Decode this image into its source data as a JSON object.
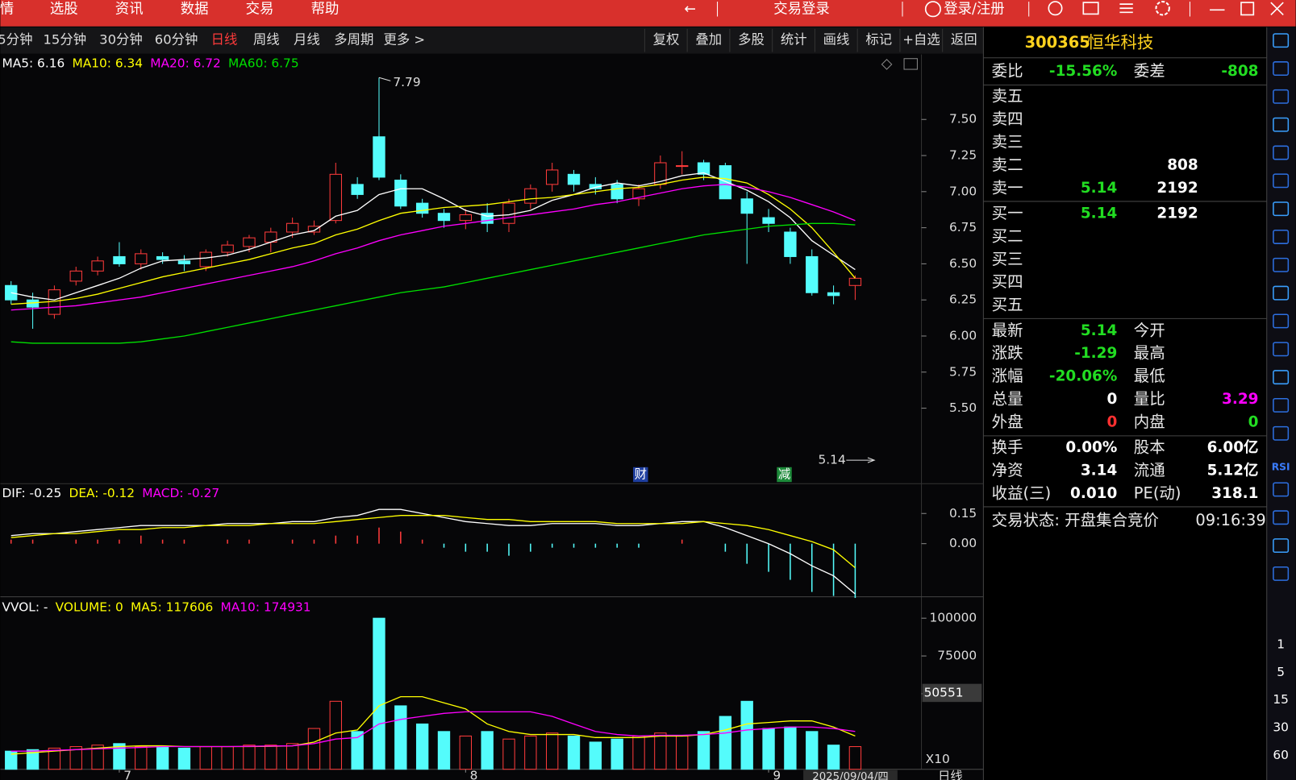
{
  "menu": [
    "情",
    "选股",
    "资讯",
    "数据",
    "交易",
    "帮助"
  ],
  "trade_login": "交易登录",
  "user_login": "登录/注册",
  "periods": {
    "items": [
      "5分钟",
      "15分钟",
      "30分钟",
      "60分钟",
      "日线",
      "周线",
      "月线",
      "多周期",
      "更多 >"
    ],
    "active": 4
  },
  "tools": [
    "复权",
    "叠加",
    "多股",
    "统计",
    "画线",
    "标记",
    "+自选",
    "返回"
  ],
  "chart": {
    "type": "candlestick",
    "legend": [
      {
        "label": "MA5: 6.16",
        "color": "#ffffff"
      },
      {
        "label": "MA10: 6.34",
        "color": "#ffff00"
      },
      {
        "label": "MA20: 6.72",
        "color": "#ff00ff"
      },
      {
        "label": "MA60: 6.75",
        "color": "#00e000"
      }
    ],
    "candles": [
      [
        6.35,
        6.38,
        6.22,
        6.25
      ],
      [
        6.25,
        6.3,
        6.05,
        6.2
      ],
      [
        6.15,
        6.35,
        6.12,
        6.32
      ],
      [
        6.38,
        6.48,
        6.35,
        6.45
      ],
      [
        6.45,
        6.55,
        6.42,
        6.52
      ],
      [
        6.55,
        6.65,
        6.48,
        6.5
      ],
      [
        6.5,
        6.6,
        6.46,
        6.57
      ],
      [
        6.55,
        6.58,
        6.5,
        6.53
      ],
      [
        6.52,
        6.56,
        6.45,
        6.5
      ],
      [
        6.48,
        6.6,
        6.45,
        6.58
      ],
      [
        6.58,
        6.66,
        6.55,
        6.63
      ],
      [
        6.62,
        6.7,
        6.58,
        6.68
      ],
      [
        6.65,
        6.75,
        6.58,
        6.72
      ],
      [
        6.72,
        6.82,
        6.68,
        6.78
      ],
      [
        6.72,
        6.8,
        6.7,
        6.76
      ],
      [
        6.8,
        7.2,
        6.78,
        7.12
      ],
      [
        7.05,
        7.1,
        6.95,
        6.98
      ],
      [
        7.38,
        7.79,
        7.08,
        7.1
      ],
      [
        7.08,
        7.12,
        6.88,
        6.9
      ],
      [
        6.92,
        6.95,
        6.82,
        6.85
      ],
      [
        6.85,
        6.88,
        6.75,
        6.8
      ],
      [
        6.8,
        6.88,
        6.74,
        6.84
      ],
      [
        6.85,
        6.92,
        6.72,
        6.78
      ],
      [
        6.78,
        6.95,
        6.72,
        6.92
      ],
      [
        6.92,
        7.05,
        6.88,
        7.02
      ],
      [
        7.05,
        7.2,
        7.0,
        7.15
      ],
      [
        7.12,
        7.15,
        7.0,
        7.05
      ],
      [
        7.05,
        7.1,
        6.98,
        7.02
      ],
      [
        7.05,
        7.08,
        6.92,
        6.95
      ],
      [
        6.95,
        7.05,
        6.9,
        7.02
      ],
      [
        7.05,
        7.25,
        7.02,
        7.2
      ],
      [
        7.18,
        7.28,
        7.12,
        7.18
      ],
      [
        7.2,
        7.22,
        7.08,
        7.12
      ],
      [
        7.18,
        7.2,
        6.95,
        6.95
      ],
      [
        6.95,
        7.0,
        6.5,
        6.85
      ],
      [
        6.82,
        6.88,
        6.72,
        6.78
      ],
      [
        6.72,
        6.75,
        6.5,
        6.55
      ],
      [
        6.55,
        6.6,
        6.28,
        6.3
      ],
      [
        6.3,
        6.35,
        6.22,
        6.28
      ],
      [
        6.35,
        6.42,
        6.25,
        6.4
      ]
    ],
    "ma": [
      {
        "color": "#ffffff",
        "values": [
          6.3,
          6.27,
          6.25,
          6.3,
          6.35,
          6.4,
          6.47,
          6.52,
          6.53,
          6.54,
          6.56,
          6.6,
          6.65,
          6.7,
          6.73,
          6.83,
          6.87,
          6.98,
          7.02,
          7.02,
          6.95,
          6.87,
          6.83,
          6.84,
          6.87,
          6.94,
          6.98,
          7.03,
          7.06,
          7.04,
          7.07,
          7.11,
          7.13,
          7.07,
          7.01,
          6.93,
          6.82,
          6.66,
          6.56,
          6.46
        ]
      },
      {
        "color": "#ffff00",
        "values": [
          6.22,
          6.23,
          6.24,
          6.26,
          6.29,
          6.33,
          6.37,
          6.41,
          6.44,
          6.47,
          6.5,
          6.53,
          6.57,
          6.61,
          6.64,
          6.7,
          6.74,
          6.8,
          6.85,
          6.87,
          6.89,
          6.9,
          6.91,
          6.93,
          6.95,
          6.96,
          6.98,
          7.0,
          7.02,
          7.03,
          7.05,
          7.08,
          7.1,
          7.09,
          7.06,
          6.98,
          6.88,
          6.75,
          6.58,
          6.4
        ]
      },
      {
        "color": "#ff00ff",
        "values": [
          6.18,
          6.19,
          6.2,
          6.21,
          6.23,
          6.25,
          6.27,
          6.3,
          6.33,
          6.36,
          6.39,
          6.42,
          6.45,
          6.48,
          6.52,
          6.57,
          6.61,
          6.66,
          6.7,
          6.73,
          6.76,
          6.78,
          6.8,
          6.82,
          6.84,
          6.86,
          6.88,
          6.91,
          6.93,
          6.96,
          6.99,
          7.02,
          7.04,
          7.05,
          7.03,
          7.0,
          6.96,
          6.91,
          6.86,
          6.8
        ]
      },
      {
        "color": "#00e000",
        "values": [
          5.96,
          5.95,
          5.95,
          5.95,
          5.95,
          5.95,
          5.96,
          5.98,
          6.0,
          6.03,
          6.06,
          6.09,
          6.12,
          6.15,
          6.18,
          6.21,
          6.24,
          6.27,
          6.3,
          6.32,
          6.34,
          6.37,
          6.4,
          6.43,
          6.46,
          6.49,
          6.52,
          6.55,
          6.58,
          6.61,
          6.64,
          6.67,
          6.7,
          6.72,
          6.74,
          6.76,
          6.77,
          6.78,
          6.78,
          6.77
        ]
      }
    ],
    "ylim": [
      5.0,
      7.95
    ],
    "yticks": [
      {
        "value": 5.5,
        "label": "5.50"
      },
      {
        "value": 5.75,
        "label": "5.75"
      },
      {
        "value": 6.0,
        "label": "6.00"
      },
      {
        "value": 6.25,
        "label": "6.25"
      },
      {
        "value": 6.5,
        "label": "6.50"
      },
      {
        "value": 6.75,
        "label": "6.75"
      },
      {
        "value": 7.0,
        "label": "7.00"
      },
      {
        "value": 7.25,
        "label": "7.25"
      },
      {
        "value": 7.5,
        "label": "7.50"
      }
    ],
    "last_price": 5.14,
    "events": [
      "财",
      "减"
    ],
    "categories": [
      null,
      null,
      null,
      null,
      null,
      "7",
      null,
      null,
      null,
      null,
      null,
      null,
      null,
      null,
      null,
      null,
      null,
      null,
      null,
      null,
      null,
      "8",
      null,
      null,
      null,
      null,
      null,
      null,
      null,
      null,
      null,
      null,
      null,
      null,
      null,
      "9",
      null,
      null,
      null,
      null
    ],
    "date_label": "2025/09/04/四",
    "period_label": "日线",
    "macd": {
      "legend": [
        {
          "label": "DIF: -0.25",
          "color": "#ffffff"
        },
        {
          "label": "DEA: -0.12",
          "color": "#ffff00"
        },
        {
          "label": "MACD: -0.27",
          "color": "#ff00ff"
        }
      ],
      "dif": [
        0.04,
        0.05,
        0.05,
        0.06,
        0.07,
        0.08,
        0.09,
        0.09,
        0.09,
        0.09,
        0.1,
        0.1,
        0.1,
        0.11,
        0.11,
        0.13,
        0.14,
        0.17,
        0.17,
        0.15,
        0.13,
        0.11,
        0.1,
        0.09,
        0.09,
        0.1,
        0.1,
        0.1,
        0.09,
        0.09,
        0.1,
        0.11,
        0.11,
        0.08,
        0.04,
        0.0,
        -0.05,
        -0.11,
        -0.16,
        -0.25
      ],
      "dea": [
        0.03,
        0.04,
        0.05,
        0.05,
        0.06,
        0.07,
        0.07,
        0.08,
        0.08,
        0.09,
        0.09,
        0.09,
        0.1,
        0.1,
        0.1,
        0.11,
        0.12,
        0.13,
        0.14,
        0.14,
        0.14,
        0.13,
        0.12,
        0.12,
        0.11,
        0.11,
        0.11,
        0.11,
        0.1,
        0.1,
        0.1,
        0.1,
        0.11,
        0.1,
        0.09,
        0.07,
        0.04,
        0.01,
        -0.03,
        -0.12
      ],
      "hist": [
        0.02,
        0.02,
        0,
        0.02,
        0.02,
        0.02,
        0.04,
        0.02,
        0.02,
        0,
        0.02,
        0.02,
        0,
        0.02,
        0.02,
        0.04,
        0.04,
        0.08,
        0.06,
        0.02,
        -0.02,
        -0.04,
        -0.04,
        -0.06,
        -0.04,
        -0.02,
        -0.02,
        -0.02,
        -0.02,
        -0.02,
        0,
        0.02,
        0,
        -0.04,
        -0.1,
        -0.14,
        -0.18,
        -0.24,
        -0.26,
        -0.27
      ],
      "ylim": [
        -0.26,
        0.29
      ],
      "yticks": [
        {
          "value": 0,
          "label": "0.00"
        },
        {
          "value": 0.15,
          "label": "0.15"
        }
      ]
    },
    "volume": {
      "legend": [
        {
          "label": "VVOL: -",
          "color": "#ffffff"
        },
        {
          "label": "VOLUME: 0",
          "color": "#ffff00"
        },
        {
          "label": "MA5: 117606",
          "color": "#ffff00"
        },
        {
          "label": "MA10: 174931",
          "color": "#ff00ff"
        }
      ],
      "values": [
        12000,
        13000,
        14000,
        15000,
        16000,
        17000,
        15000,
        15000,
        14000,
        15000,
        15000,
        16000,
        16000,
        17000,
        27000,
        45000,
        25000,
        100000,
        42000,
        30000,
        25000,
        22000,
        25000,
        20000,
        22000,
        24000,
        22000,
        18000,
        20000,
        22000,
        24000,
        22000,
        25000,
        35000,
        45000,
        27000,
        28000,
        25000,
        16000,
        15000
      ],
      "ma": [
        {
          "color": "#ffff00",
          "values": [
            10000,
            11000,
            12000,
            13000,
            14000,
            15000,
            15500,
            15500,
            15000,
            15000,
            15000,
            15000,
            15200,
            15500,
            18000,
            24000,
            26000,
            42000,
            48000,
            48000,
            44000,
            40000,
            30000,
            25000,
            23000,
            23000,
            23000,
            21000,
            21000,
            21000,
            22000,
            22000,
            23000,
            26000,
            30000,
            31000,
            32000,
            32000,
            28000,
            22000
          ]
        },
        {
          "color": "#ff00ff",
          "values": [
            12000,
            12000,
            12500,
            13000,
            13500,
            14000,
            14500,
            15000,
            15000,
            15000,
            15000,
            15200,
            15400,
            15500,
            17000,
            20000,
            21000,
            30000,
            33000,
            35000,
            37000,
            38000,
            38000,
            38000,
            38000,
            35000,
            30000,
            25000,
            23000,
            22000,
            22500,
            22500,
            23000,
            24000,
            26000,
            27000,
            28000,
            28000,
            27000,
            25000
          ]
        }
      ],
      "ylim": [
        0,
        112000
      ],
      "yticks": [
        50000,
        75000,
        100000
      ],
      "current": 50551,
      "scale_label": "X10"
    }
  },
  "quote": {
    "code": "300365",
    "name": "恒华科技",
    "ratio": [
      {
        "label": "委比",
        "value": "-15.56%",
        "color": "#22dd22"
      },
      {
        "label": "委差",
        "value": "-808",
        "color": "#22dd22"
      }
    ],
    "asks": [
      {
        "label": "卖五"
      },
      {
        "label": "卖四"
      },
      {
        "label": "卖三"
      },
      {
        "label": "卖二",
        "qty": "808"
      },
      {
        "label": "卖一",
        "price": "5.14",
        "qty": "2192"
      }
    ],
    "bids": [
      {
        "label": "买一",
        "price": "5.14",
        "qty": "2192"
      },
      {
        "label": "买二"
      },
      {
        "label": "买三"
      },
      {
        "label": "买四"
      },
      {
        "label": "买五"
      }
    ],
    "stats": [
      [
        {
          "label": "最新",
          "value": "5.14",
          "color": "#22dd22"
        },
        {
          "label": "今开"
        }
      ],
      [
        {
          "label": "涨跌",
          "value": "-1.29",
          "color": "#22dd22"
        },
        {
          "label": "最高"
        }
      ],
      [
        {
          "label": "涨幅",
          "value": "-20.06%",
          "color": "#22dd22"
        },
        {
          "label": "最低"
        }
      ],
      [
        {
          "label": "总量",
          "value": "0",
          "color": "#ffffff"
        },
        {
          "label": "量比",
          "value": "3.29",
          "color": "#ff00ff"
        }
      ],
      [
        {
          "label": "外盘",
          "value": "0",
          "color": "#ff3030"
        },
        {
          "label": "内盘",
          "value": "0",
          "color": "#22dd22"
        }
      ]
    ],
    "stats2": [
      [
        {
          "label": "换手",
          "value": "0.00%"
        },
        {
          "label": "股本",
          "value": "6.00亿"
        }
      ],
      [
        {
          "label": "净资",
          "value": "3.14"
        },
        {
          "label": "流通",
          "value": "5.12亿"
        }
      ],
      [
        {
          "label": "收益(三)",
          "value": "0.010"
        },
        {
          "label": "PE(动)",
          "value": "318.1"
        }
      ]
    ],
    "status": "交易状态: 开盘集合竞价",
    "time": "09:16:39"
  },
  "side": {
    "rsi": "RSI",
    "periods": [
      "1",
      "5",
      "15",
      "30",
      "60"
    ]
  }
}
